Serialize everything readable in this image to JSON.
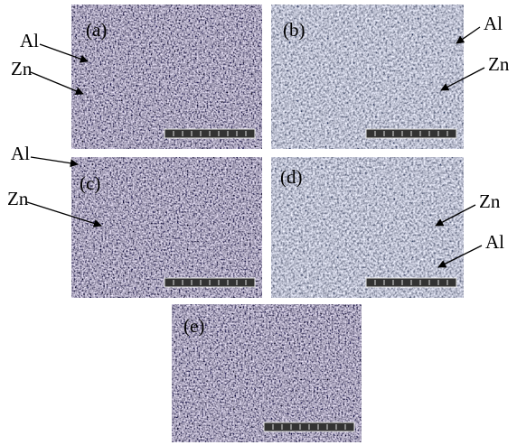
{
  "panels": [
    {
      "label": "(a)",
      "annotations": [
        "Al",
        "Zn"
      ]
    },
    {
      "label": "(b)",
      "annotations": [
        "Al",
        "Zn"
      ]
    },
    {
      "label": "(c)",
      "annotations": [
        "Al",
        "Zn"
      ]
    },
    {
      "label": "(d)",
      "annotations": [
        "Zn",
        "Al"
      ]
    },
    {
      "label": "(e)"
    }
  ]
}
